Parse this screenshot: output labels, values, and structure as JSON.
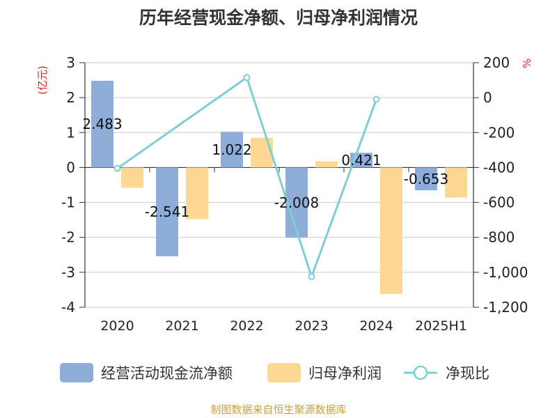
{
  "title": "历年经营现金净额、归母净利润情况",
  "source": "制图数据来自恒生聚源数据库",
  "colors": {
    "cash": "#8eadd9",
    "profit": "#fdd895",
    "ratio": "#7ecfd4",
    "grid": "#cccccc",
    "axis": "#333333",
    "unit": "#e02020",
    "source": "#c8a040"
  },
  "chart_data": {
    "type": "bar",
    "title": "历年经营现金净额、归母净利润情况",
    "categories": [
      "2020",
      "2021",
      "2022",
      "2023",
      "2024",
      "2025H1"
    ],
    "y_left": {
      "unit": "(亿元)",
      "range": [
        -4,
        3
      ],
      "ticks": [
        "3",
        "2",
        "1",
        "0",
        "-1",
        "-2",
        "-3",
        "-4"
      ]
    },
    "y_right": {
      "unit": "%",
      "range": [
        -1200,
        200
      ],
      "ticks": [
        "200",
        "0",
        "-200",
        "-400",
        "-600",
        "-800",
        "-1,000",
        "-1,200"
      ]
    },
    "series": [
      {
        "name": "经营活动现金流净额",
        "type": "bar",
        "axis": "left",
        "values": [
          2.483,
          -2.541,
          1.022,
          -2.008,
          0.421,
          -0.653
        ],
        "labels": [
          "2.483",
          "-2.541",
          "1.022",
          "-2.008",
          "0.421",
          "-0.653"
        ]
      },
      {
        "name": "归母净利润",
        "type": "bar",
        "axis": "left",
        "values": [
          -0.58,
          -1.48,
          0.85,
          0.18,
          -3.62,
          -0.86
        ]
      },
      {
        "name": "净现比",
        "type": "line",
        "axis": "right",
        "values": [
          -405,
          null,
          115,
          -1025,
          -10,
          null
        ]
      }
    ],
    "legend": "bottom",
    "grid": true
  }
}
